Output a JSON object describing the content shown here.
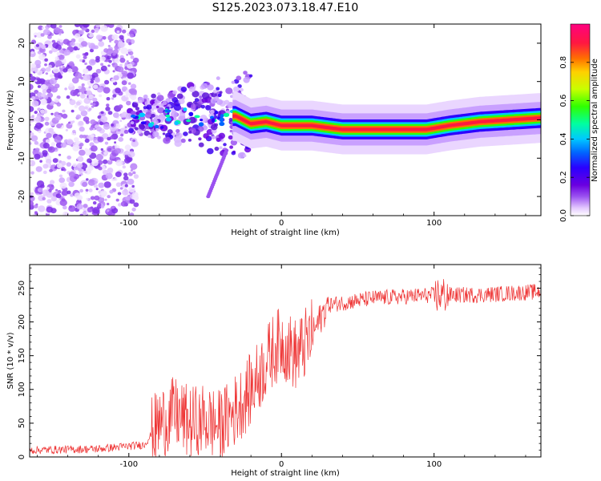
{
  "title": "S125.2023.073.18.47.E10",
  "chart_data": [
    {
      "type": "heatmap",
      "xlabel": "Height of straight line (km)",
      "ylabel": "Frequency (Hz)",
      "xlim": [
        -165,
        170
      ],
      "ylim": [
        -25,
        25
      ],
      "xticks": [
        -100,
        0,
        100
      ],
      "yticks": [
        -20,
        -10,
        0,
        10,
        20
      ],
      "grid": false,
      "colorbar": {
        "label": "Normalized spectral amplitude",
        "range": [
          0,
          1
        ],
        "ticks": [
          "0.0",
          "0.2",
          "0.4",
          "0.6",
          "0.8"
        ],
        "colors": [
          "#ffffff",
          "#e4c8ff",
          "#9b52f0",
          "#6a00e0",
          "#2b00ff",
          "#0066ff",
          "#00c8ff",
          "#00ffa0",
          "#30ff00",
          "#c8ff00",
          "#ffd000",
          "#ff7000",
          "#ff1840",
          "#ff0080"
        ]
      },
      "ridge": {
        "description_points_x": [
          -30,
          -20,
          -10,
          0,
          20,
          40,
          60,
          80,
          95,
          110,
          130,
          150,
          170
        ],
        "frequency_hz": [
          1,
          -1,
          -0.5,
          -1.5,
          -1.5,
          -2.5,
          -2.5,
          -2.5,
          -2.5,
          -1.5,
          -0.5,
          0,
          0.5
        ]
      }
    },
    {
      "type": "line",
      "xlabel": "Height of straight line (km)",
      "ylabel": "SNR (10 * v/v)",
      "xlim": [
        -165,
        170
      ],
      "ylim": [
        0,
        285
      ],
      "xticks": [
        -100,
        0,
        100
      ],
      "yticks": [
        0,
        50,
        100,
        150,
        200,
        250
      ],
      "grid": false,
      "series": [
        {
          "color": "#ee3333",
          "envelope_x": [
            -165,
            -120,
            -90,
            -80,
            -70,
            -60,
            -50,
            -40,
            -30,
            -20,
            -10,
            -5,
            0,
            10,
            20,
            30,
            60,
            100,
            130,
            170
          ],
          "envelope_mean": [
            10,
            12,
            18,
            50,
            65,
            50,
            55,
            45,
            70,
            100,
            140,
            160,
            170,
            150,
            180,
            225,
            235,
            240,
            240,
            245
          ]
        }
      ]
    }
  ]
}
